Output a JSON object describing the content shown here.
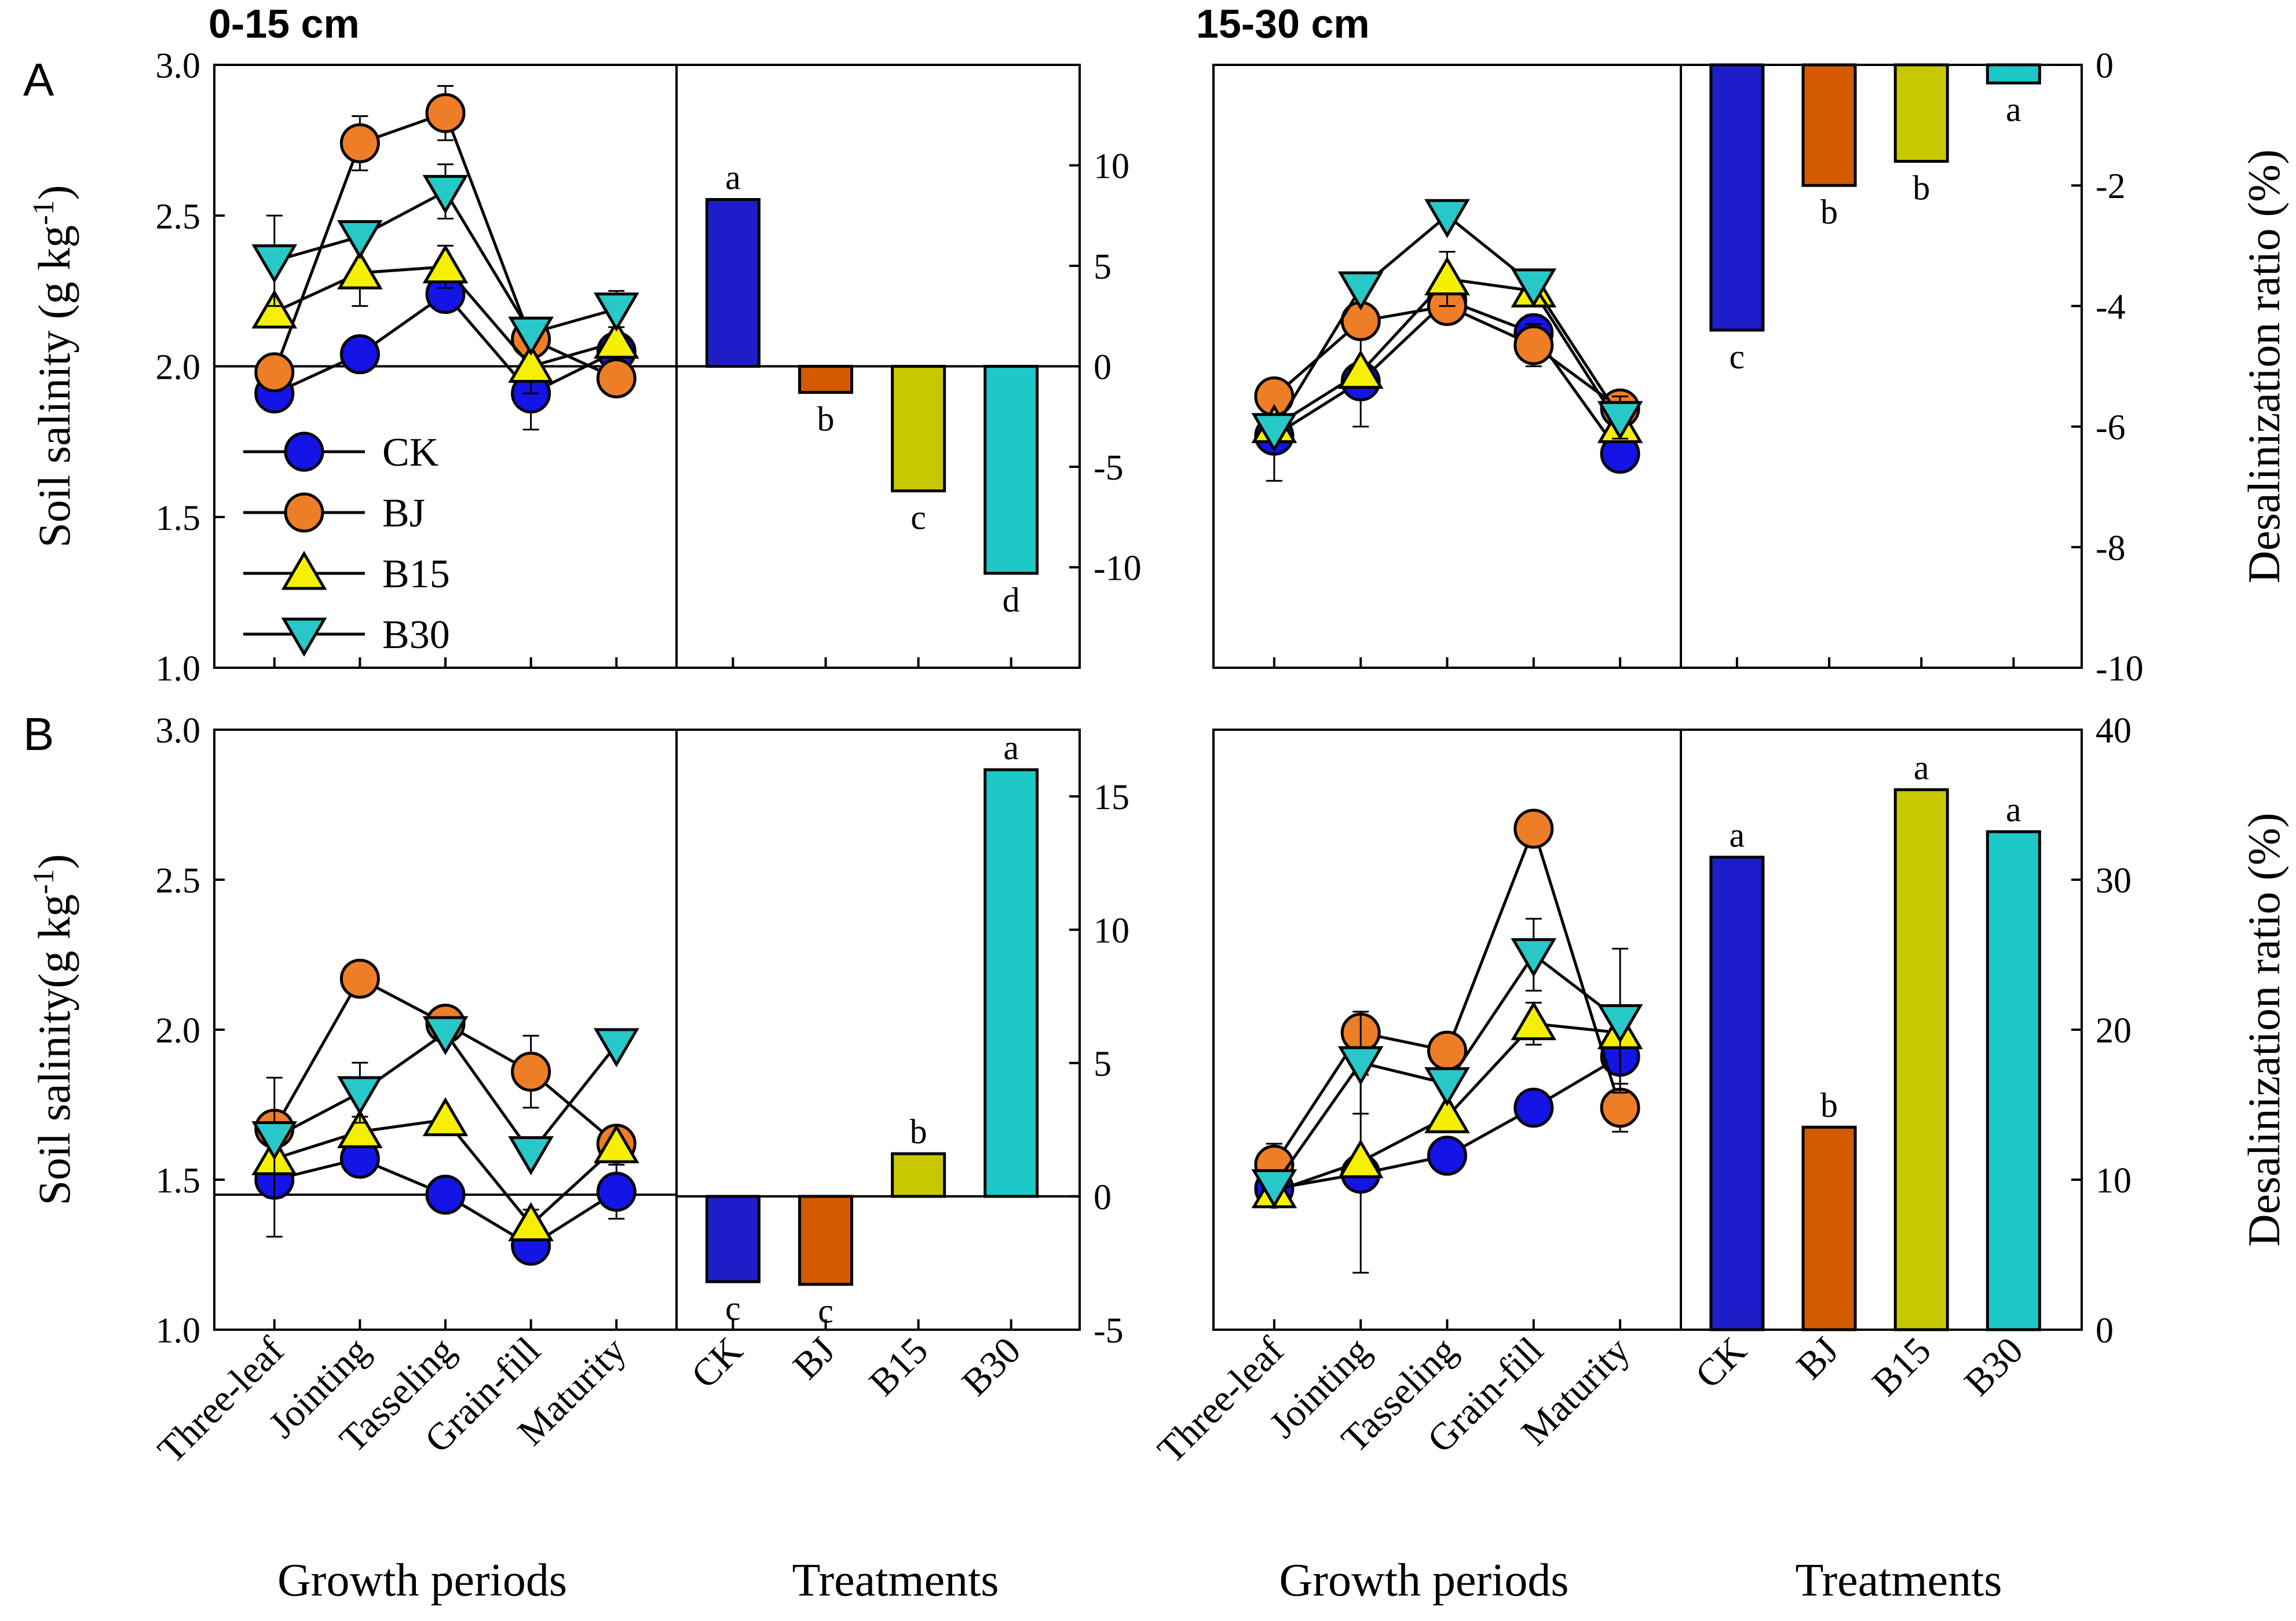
{
  "figure": {
    "depth_labels": [
      "0-15 cm",
      "15-30 cm"
    ],
    "row_labels": [
      "A",
      "B"
    ],
    "left_ylabel_row_a": "Soil salinity (g kg",
    "left_ylabel_row_b": "Soil salinity(g kg",
    "left_ylabel_sup": "-1",
    "left_ylabel_close": ")",
    "right_ylabel": "Desalinization ratio (%)",
    "xlabel_growth": "Growth periods",
    "xlabel_treatments": "Treatments",
    "legend": [
      "CK",
      "BJ",
      "B15",
      "B30"
    ]
  },
  "colors": {
    "CK": "#1414e6",
    "BJ": "#ee7d28",
    "B15": "#f5f000",
    "B30": "#28c8c8",
    "bar_CK": "#1e1ec8",
    "bar_BJ": "#d25a00",
    "bar_B15": "#c8c800",
    "bar_B30": "#1ec8c8"
  },
  "chart_data": [
    {
      "type": "line",
      "panel": "A-left-growth",
      "title": "0-15 cm",
      "categories": [
        "Three-leaf",
        "Jointing",
        "Tasseling",
        "Grain-fill",
        "Maturity"
      ],
      "xlabel": "Growth periods",
      "ylabel": "Soil salinity (g kg-1)",
      "ylim": [
        1.0,
        3.0
      ],
      "yticks": [
        "1.0",
        "1.5",
        "2.0",
        "2.5",
        "3.0"
      ],
      "reference_line": 2.0,
      "series": [
        {
          "name": "CK",
          "values": [
            1.91,
            2.04,
            2.24,
            1.91,
            2.05
          ],
          "errors": [
            0.02,
            0.02,
            0.02,
            0.12,
            0.02
          ]
        },
        {
          "name": "BJ",
          "values": [
            1.98,
            2.74,
            2.84,
            2.09,
            1.96
          ],
          "errors": [
            0.02,
            0.09,
            0.09,
            0.02,
            0.02
          ]
        },
        {
          "name": "B15",
          "values": [
            2.18,
            2.31,
            2.33,
            2.0,
            2.08
          ],
          "errors": [
            0.02,
            0.11,
            0.07,
            0.09,
            0.02
          ]
        },
        {
          "name": "B30",
          "values": [
            2.35,
            2.43,
            2.58,
            2.11,
            2.19
          ],
          "errors": [
            0.15,
            0.02,
            0.09,
            0.02,
            0.06
          ]
        }
      ]
    },
    {
      "type": "bar",
      "panel": "A-left-treatments",
      "categories": [
        "CK",
        "BJ",
        "B15",
        "B30"
      ],
      "values": [
        8.3,
        -1.3,
        -6.2,
        -10.3
      ],
      "significance": [
        "a",
        "b",
        "c",
        "d"
      ],
      "xlabel": "Treatments",
      "ylim": [
        -15,
        15
      ],
      "yticks": [
        "-10",
        "-5",
        "0",
        "5",
        "10"
      ]
    },
    {
      "type": "line",
      "panel": "A-right-growth",
      "title": "15-30 cm",
      "categories": [
        "Three-leaf",
        "Jointing",
        "Tasseling",
        "Grain-fill",
        "Maturity"
      ],
      "xlabel": "Growth periods",
      "ylim": [
        1.0,
        3.0
      ],
      "series": [
        {
          "name": "CK",
          "values": [
            1.77,
            1.95,
            2.22,
            2.11,
            1.71
          ],
          "errors": [
            0.15,
            0.15,
            0.05,
            0.06,
            0.02
          ]
        },
        {
          "name": "BJ",
          "values": [
            1.9,
            2.15,
            2.2,
            2.07,
            1.86
          ],
          "errors": [
            0.02,
            0.02,
            0.02,
            0.07,
            0.02
          ]
        },
        {
          "name": "B15",
          "values": [
            1.8,
            1.98,
            2.29,
            2.25,
            1.8
          ],
          "errors": [
            0.02,
            0.02,
            0.09,
            0.04,
            0.02
          ]
        },
        {
          "name": "B30",
          "values": [
            1.79,
            2.26,
            2.5,
            2.27,
            1.83
          ],
          "errors": [
            0.02,
            0.02,
            0.02,
            0.02,
            0.07
          ]
        }
      ]
    },
    {
      "type": "bar",
      "panel": "A-right-treatments",
      "categories": [
        "CK",
        "BJ",
        "B15",
        "B30"
      ],
      "values": [
        -4.4,
        -2.0,
        -1.6,
        -0.3
      ],
      "significance": [
        "c",
        "b",
        "b",
        "a"
      ],
      "xlabel": "Treatments",
      "ylabel": "Desalinization ratio (%)",
      "ylim": [
        -10,
        0
      ],
      "yticks": [
        "-10",
        "-8",
        "-6",
        "-4",
        "-2",
        "0"
      ]
    },
    {
      "type": "line",
      "panel": "B-left-growth",
      "categories": [
        "Three-leaf",
        "Jointing",
        "Tasseling",
        "Grain-fill",
        "Maturity"
      ],
      "xlabel": "Growth periods",
      "ylabel": "Soil salinity(g kg-1)",
      "ylim": [
        1.0,
        3.0
      ],
      "yticks": [
        "1.0",
        "1.5",
        "2.0",
        "2.5",
        "3.0"
      ],
      "reference_line": 1.45,
      "series": [
        {
          "name": "CK",
          "values": [
            1.5,
            1.57,
            1.45,
            1.28,
            1.46
          ],
          "errors": [
            0.19,
            0.02,
            0.02,
            0.02,
            0.09
          ]
        },
        {
          "name": "BJ",
          "values": [
            1.67,
            2.17,
            2.02,
            1.86,
            1.62
          ],
          "errors": [
            0.02,
            0.05,
            0.02,
            0.12,
            0.02
          ]
        },
        {
          "name": "B15",
          "values": [
            1.57,
            1.66,
            1.7,
            1.35,
            1.61
          ],
          "errors": [
            0.02,
            0.05,
            0.02,
            0.05,
            0.02
          ]
        },
        {
          "name": "B30",
          "values": [
            1.64,
            1.79,
            1.99,
            1.59,
            1.95
          ],
          "errors": [
            0.2,
            0.1,
            0.02,
            0.02,
            0.02
          ]
        }
      ]
    },
    {
      "type": "bar",
      "panel": "B-left-treatments",
      "categories": [
        "CK",
        "BJ",
        "B15",
        "B30"
      ],
      "values": [
        -3.2,
        -3.3,
        1.6,
        16.0
      ],
      "significance": [
        "c",
        "c",
        "b",
        "a"
      ],
      "xlabel": "Treatments",
      "ylim": [
        -5,
        17.5
      ],
      "yticks": [
        "-5",
        "0",
        "5",
        "10",
        "15"
      ]
    },
    {
      "type": "line",
      "panel": "B-right-growth",
      "categories": [
        "Three-leaf",
        "Jointing",
        "Tasseling",
        "Grain-fill",
        "Maturity"
      ],
      "xlabel": "Growth periods",
      "ylim": [
        1.0,
        3.0
      ],
      "series": [
        {
          "name": "CK",
          "values": [
            1.47,
            1.52,
            1.58,
            1.74,
            1.91
          ],
          "errors": [
            0.02,
            0.33,
            0.05,
            0.02,
            0.02
          ]
        },
        {
          "name": "BJ",
          "values": [
            1.55,
            1.99,
            1.93,
            2.67,
            1.74
          ],
          "errors": [
            0.07,
            0.02,
            0.05,
            0.02,
            0.08
          ]
        },
        {
          "name": "B15",
          "values": [
            1.46,
            1.56,
            1.71,
            2.02,
            1.99
          ],
          "errors": [
            0.02,
            0.02,
            0.02,
            0.07,
            0.02
          ]
        },
        {
          "name": "B30",
          "values": [
            1.48,
            1.89,
            1.82,
            2.25,
            2.03
          ],
          "errors": [
            0.02,
            0.17,
            0.02,
            0.12,
            0.24
          ]
        }
      ]
    },
    {
      "type": "bar",
      "panel": "B-right-treatments",
      "categories": [
        "CK",
        "BJ",
        "B15",
        "B30"
      ],
      "values": [
        31.5,
        13.5,
        36.0,
        33.2
      ],
      "significance": [
        "a",
        "b",
        "a",
        "a"
      ],
      "xlabel": "Treatments",
      "ylabel": "Desalinization ratio (%)",
      "ylim": [
        0,
        40
      ],
      "yticks": [
        "0",
        "10",
        "20",
        "30",
        "40"
      ]
    }
  ]
}
